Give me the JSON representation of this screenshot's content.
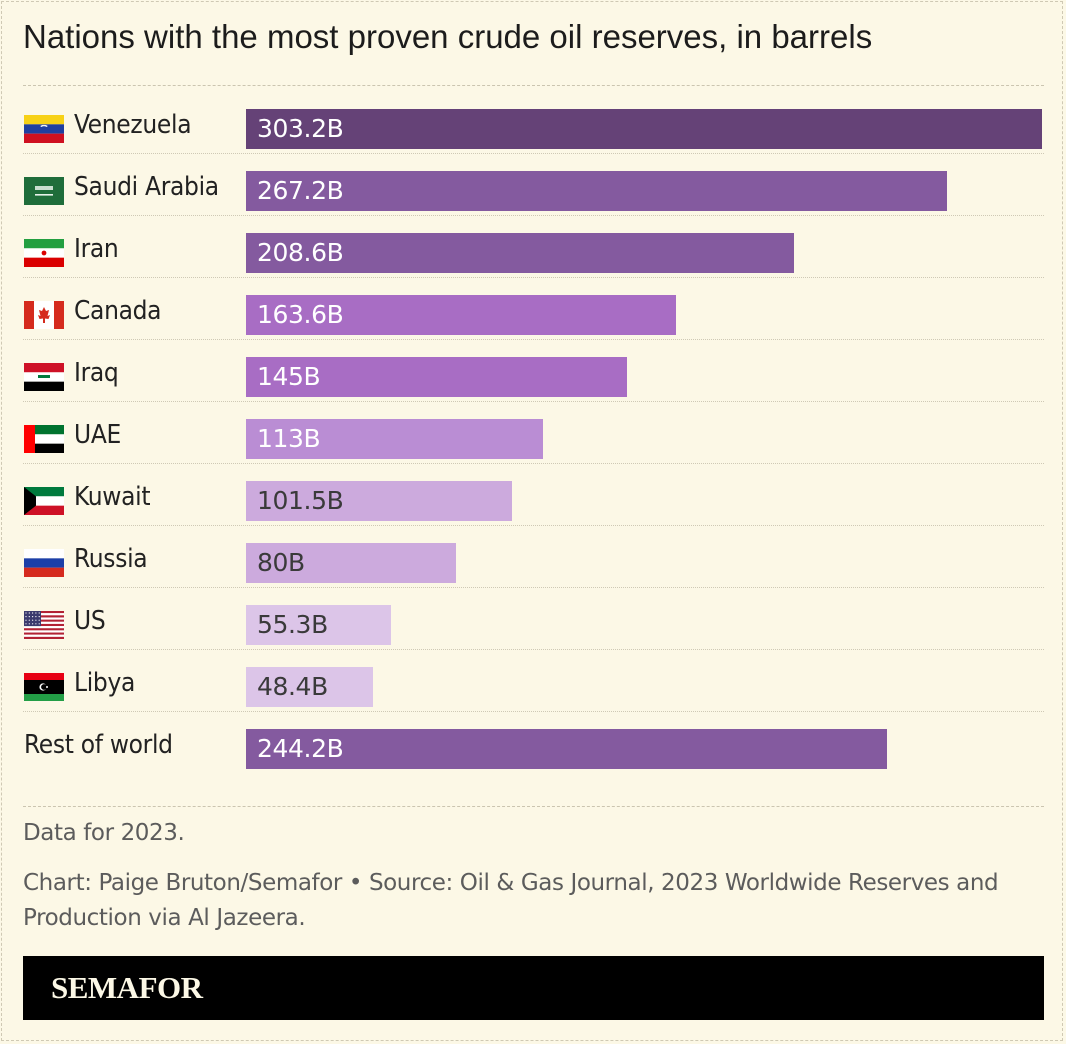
{
  "title": "Nations with the most proven crude oil reserves, in barrels",
  "note": "Data for 2023.",
  "credit": "Chart: Paige Bruton/Semafor • Source: Oil & Gas Journal, 2023 Worldwide Reserves and Production via Al Jazeera.",
  "brand": "SEMAFOR",
  "chart_data": {
    "type": "bar",
    "orientation": "horizontal",
    "title": "Nations with the most proven crude oil reserves, in barrels",
    "unit": "B",
    "categories": [
      "Venezuela",
      "Saudi Arabia",
      "Iran",
      "Canada",
      "Iraq",
      "UAE",
      "Kuwait",
      "Russia",
      "US",
      "Libya",
      "Rest of world"
    ],
    "values": [
      303.2,
      267.2,
      208.6,
      163.6,
      145,
      113,
      101.5,
      80,
      55.3,
      48.4,
      244.2
    ],
    "labels": [
      "303.2B",
      "267.2B",
      "208.6B",
      "163.6B",
      "145B",
      "113B",
      "101.5B",
      "80B",
      "55.3B",
      "48.4B",
      "244.2B"
    ],
    "flags": [
      "venezuela-flag",
      "saudi-arabia-flag",
      "iran-flag",
      "canada-flag",
      "iraq-flag",
      "uae-flag",
      "kuwait-flag",
      "russia-flag",
      "us-flag",
      "libya-flag",
      null
    ],
    "colors": [
      "#654277",
      "#845a9f",
      "#845a9f",
      "#a86dc4",
      "#a86dc4",
      "#ba8dd4",
      "#ccaadd",
      "#ccaadd",
      "#dcc5e8",
      "#dcc5e8",
      "#845a9f"
    ],
    "label_colors": [
      "#ffffff",
      "#ffffff",
      "#ffffff",
      "#ffffff",
      "#ffffff",
      "#ffffff",
      "#3a3a3a",
      "#3a3a3a",
      "#3a3a3a",
      "#3a3a3a",
      "#ffffff"
    ],
    "xlim": [
      0,
      303.2
    ],
    "grid": false,
    "legend": "none"
  }
}
